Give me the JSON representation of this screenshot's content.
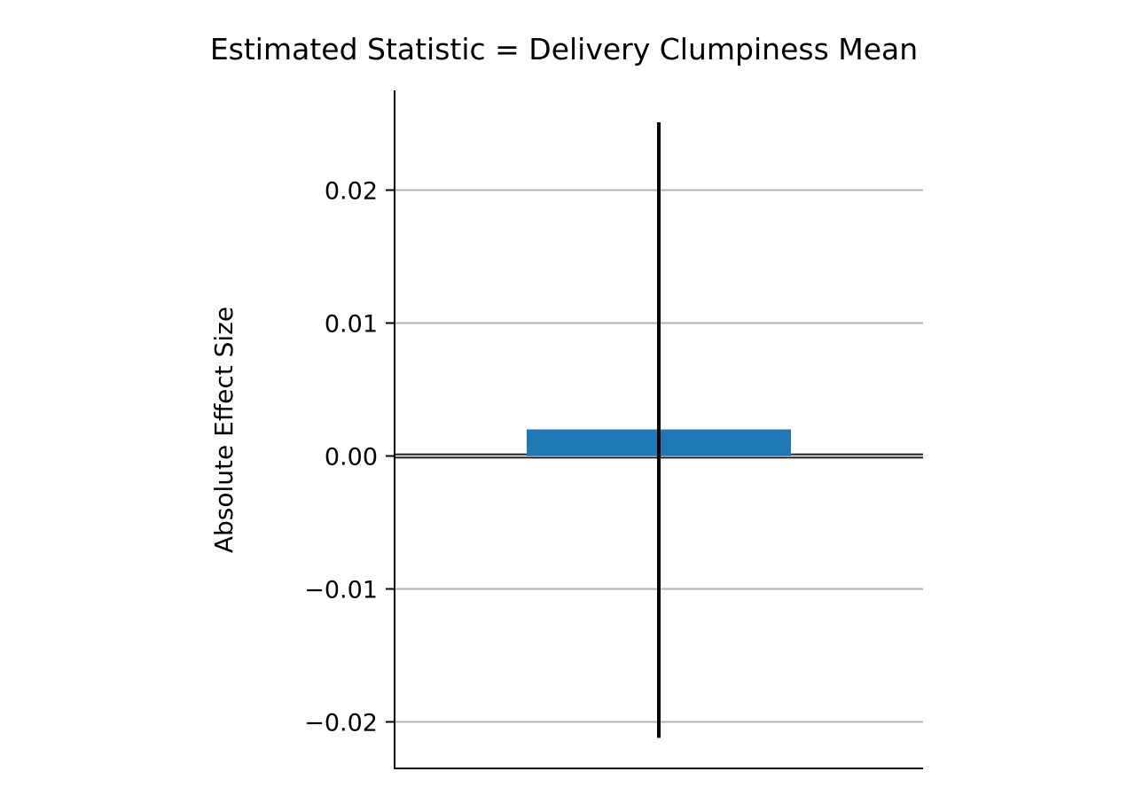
{
  "chart_data": {
    "type": "bar",
    "title": "Estimated Statistic = Delivery Clumpiness Mean",
    "xlabel": "",
    "ylabel": "Absolute Effect Size",
    "categories": [
      ""
    ],
    "values": [
      0.002
    ],
    "error_bars": [
      {
        "low": -0.0212,
        "high": 0.0251
      }
    ],
    "ylim": [
      -0.0235,
      0.0275
    ],
    "yticks": [
      0.02,
      0.01,
      0.0,
      -0.01,
      -0.02
    ],
    "ytick_labels": [
      "0.02",
      "0.01",
      "0.00",
      "−0.01",
      "−0.02"
    ],
    "reference_line": 0.0,
    "grid": "horizontal",
    "colors": {
      "bar": "#1f77b4",
      "grid": "#b0b0b0",
      "error_bar": "#000000",
      "axis": "#000000"
    }
  }
}
